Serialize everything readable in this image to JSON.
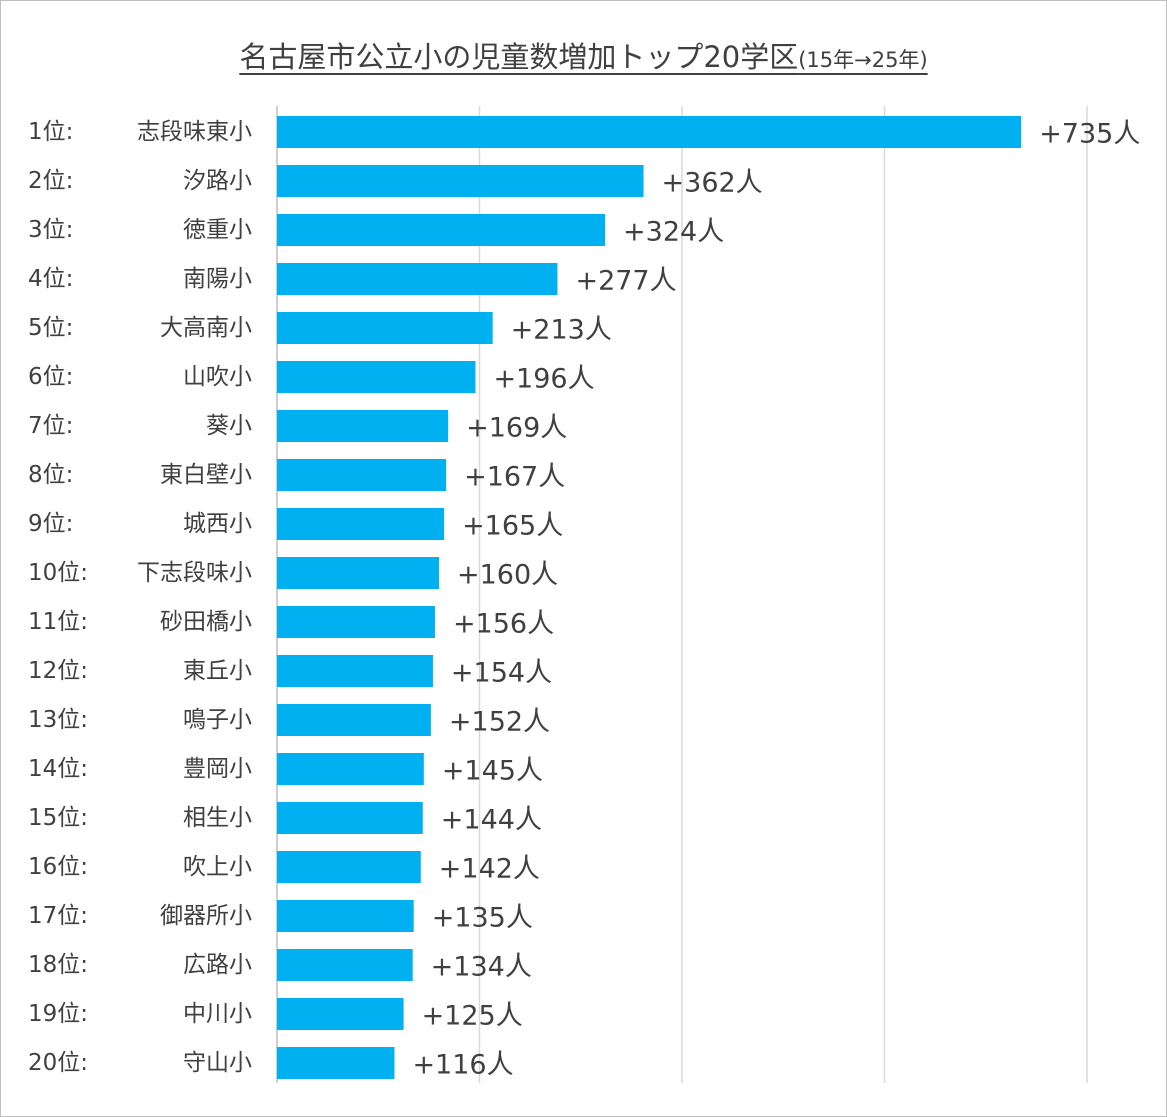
{
  "chart_data": {
    "type": "bar",
    "orientation": "horizontal",
    "title": "名古屋市公立小の児童数増加トップ20学区",
    "subtitle": "(15年→25年)",
    "value_prefix": "+",
    "value_suffix": "人",
    "xlim": [
      0,
      800
    ],
    "grid": true,
    "bar_color": "#00B0F0",
    "categories": [
      {
        "rank": "1位:",
        "name": "志段味東小",
        "value": 735
      },
      {
        "rank": "2位:",
        "name": "汐路小",
        "value": 362
      },
      {
        "rank": "3位:",
        "name": "徳重小",
        "value": 324
      },
      {
        "rank": "4位:",
        "name": "南陽小",
        "value": 277
      },
      {
        "rank": "5位:",
        "name": "大高南小",
        "value": 213
      },
      {
        "rank": "6位:",
        "name": "山吹小",
        "value": 196
      },
      {
        "rank": "7位:",
        "name": "葵小",
        "value": 169
      },
      {
        "rank": "8位:",
        "name": "東白壁小",
        "value": 167
      },
      {
        "rank": "9位:",
        "name": "城西小",
        "value": 165
      },
      {
        "rank": "10位:",
        "name": "下志段味小",
        "value": 160
      },
      {
        "rank": "11位:",
        "name": "砂田橋小",
        "value": 156
      },
      {
        "rank": "12位:",
        "name": "東丘小",
        "value": 154
      },
      {
        "rank": "13位:",
        "name": "鳴子小",
        "value": 152
      },
      {
        "rank": "14位:",
        "name": "豊岡小",
        "value": 145
      },
      {
        "rank": "15位:",
        "name": "相生小",
        "value": 144
      },
      {
        "rank": "16位:",
        "name": "吹上小",
        "value": 142
      },
      {
        "rank": "17位:",
        "name": "御器所小",
        "value": 135
      },
      {
        "rank": "18位:",
        "name": "広路小",
        "value": 134
      },
      {
        "rank": "19位:",
        "name": "中川小",
        "value": 125
      },
      {
        "rank": "20位:",
        "name": "守山小",
        "value": 116
      }
    ]
  }
}
